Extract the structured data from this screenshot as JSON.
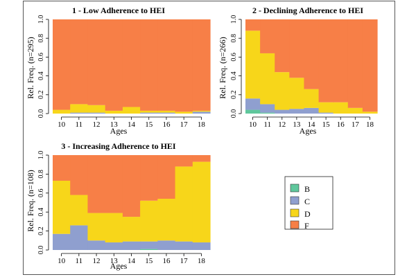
{
  "colors": {
    "B": "#5fc79c",
    "C": "#8f9fcf",
    "D": "#f7d61a",
    "F": "#f77f47"
  },
  "ylim": [
    0,
    1
  ],
  "y_ticks": [
    "0.0",
    "0.2",
    "0.4",
    "0.6",
    "0.8",
    "1.0"
  ],
  "legend_labels": [
    "B",
    "C",
    "D",
    "F"
  ],
  "chart_data": [
    {
      "type": "area",
      "stacked": true,
      "title": "1 - Low Adherence to HEI",
      "xlabel": "Ages",
      "ylabel": "Rel. Freq. (n=295)",
      "x": [
        10,
        11,
        12,
        13,
        14,
        15,
        16,
        17,
        18
      ],
      "x_tick_labels": [
        "10",
        "11",
        "12",
        "13",
        "14",
        "15",
        "16",
        "17",
        "18"
      ],
      "series": [
        {
          "name": "B",
          "values": [
            0,
            0,
            0,
            0,
            0,
            0,
            0,
            0,
            0
          ]
        },
        {
          "name": "C",
          "values": [
            0.0,
            0.01,
            0.01,
            0.0,
            0.0,
            0.01,
            0.01,
            0.0,
            0.02
          ]
        },
        {
          "name": "D",
          "values": [
            0.04,
            0.09,
            0.08,
            0.03,
            0.07,
            0.02,
            0.02,
            0.02,
            0.01
          ]
        },
        {
          "name": "F",
          "values": [
            0.96,
            0.9,
            0.91,
            0.97,
            0.93,
            0.97,
            0.97,
            0.98,
            0.97
          ]
        }
      ]
    },
    {
      "type": "area",
      "stacked": true,
      "title": "2 - Declining Adherence to HEI",
      "xlabel": "Ages",
      "ylabel": "Rel. Freq. (n=266)",
      "x": [
        10,
        11,
        12,
        13,
        14,
        15,
        16,
        17,
        18
      ],
      "x_tick_labels": [
        "10",
        "11",
        "12",
        "13",
        "14",
        "15",
        "16",
        "17",
        "18"
      ],
      "series": [
        {
          "name": "B",
          "values": [
            0.04,
            0.01,
            0.0,
            0.0,
            0.0,
            0.0,
            0.0,
            0.0,
            0.0
          ]
        },
        {
          "name": "C",
          "values": [
            0.12,
            0.09,
            0.04,
            0.05,
            0.06,
            0.01,
            0.0,
            0.0,
            0.0
          ]
        },
        {
          "name": "D",
          "values": [
            0.72,
            0.54,
            0.4,
            0.33,
            0.2,
            0.11,
            0.12,
            0.06,
            0.02
          ]
        },
        {
          "name": "F",
          "values": [
            0.12,
            0.36,
            0.56,
            0.62,
            0.74,
            0.88,
            0.88,
            0.94,
            0.98
          ]
        }
      ]
    },
    {
      "type": "area",
      "stacked": true,
      "title": "3 - Increasing Adherence to HEI",
      "xlabel": "Ages",
      "ylabel": "Rel. Freq. (n=108)",
      "x": [
        10,
        11,
        12,
        13,
        14,
        15,
        16,
        17,
        18
      ],
      "x_tick_labels": [
        "10",
        "11",
        "12",
        "13",
        "14",
        "15",
        "16",
        "17",
        "18"
      ],
      "series": [
        {
          "name": "B",
          "values": [
            0.0,
            0.0,
            0.0,
            0.0,
            0.0,
            0.01,
            0.0,
            0.0,
            0.0
          ]
        },
        {
          "name": "C",
          "values": [
            0.17,
            0.26,
            0.1,
            0.08,
            0.09,
            0.08,
            0.1,
            0.09,
            0.08
          ]
        },
        {
          "name": "D",
          "values": [
            0.56,
            0.32,
            0.29,
            0.31,
            0.26,
            0.43,
            0.44,
            0.79,
            0.85
          ]
        },
        {
          "name": "F",
          "values": [
            0.27,
            0.42,
            0.61,
            0.61,
            0.65,
            0.48,
            0.46,
            0.12,
            0.07
          ]
        }
      ]
    }
  ]
}
